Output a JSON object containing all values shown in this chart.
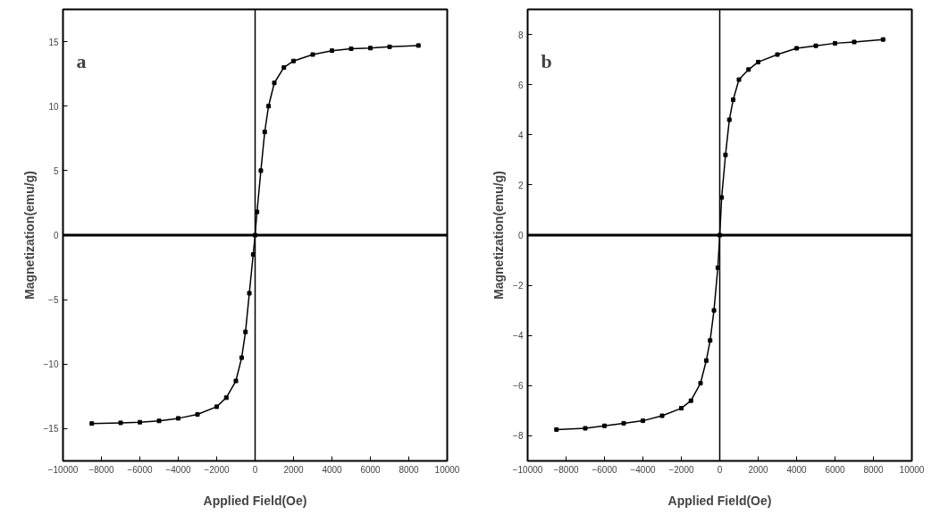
{
  "chart_data": [
    {
      "type": "line",
      "annotations": [
        "a"
      ],
      "xlabel": "Applied Field(Oe)",
      "ylabel": "Magnetization(emu/g)",
      "marker": "square",
      "line_style": "solid",
      "grid": false,
      "x": [
        -8500,
        -7000,
        -6000,
        -5000,
        -4000,
        -3000,
        -2000,
        -1500,
        -1000,
        -700,
        -500,
        -300,
        -100,
        0,
        100,
        300,
        500,
        700,
        1000,
        1500,
        2000,
        3000,
        4000,
        5000,
        6000,
        7000,
        8500
      ],
      "series": [
        {
          "color": "#000000",
          "values": [
            -14.6,
            -14.55,
            -14.5,
            -14.4,
            -14.2,
            -13.9,
            -13.3,
            -12.6,
            -11.3,
            -9.5,
            -7.5,
            -4.5,
            -1.5,
            0,
            1.8,
            5,
            8,
            10,
            11.8,
            13,
            13.5,
            14.0,
            14.3,
            14.45,
            14.5,
            14.6,
            14.7
          ]
        }
      ],
      "xlim": [
        -10000,
        10000
      ],
      "xticks": [
        -10000,
        -8000,
        -6000,
        -4000,
        -2000,
        0,
        2000,
        4000,
        6000,
        8000,
        10000
      ],
      "ylim": [
        -17.5,
        17.5
      ],
      "yticks": [
        -15,
        -10,
        -5,
        0,
        5,
        10,
        15
      ],
      "ref_lines": [
        {
          "axis": "x",
          "value": 0,
          "color": "#000000"
        },
        {
          "axis": "y",
          "value": 0,
          "color": "#000000"
        }
      ]
    },
    {
      "type": "line",
      "annotations": [
        "b"
      ],
      "xlabel": "Applied Field(Oe)",
      "ylabel": "Magnetization(emu/g)",
      "marker": "square",
      "line_style": "solid",
      "grid": false,
      "x": [
        -8500,
        -7000,
        -6000,
        -5000,
        -4000,
        -3000,
        -2000,
        -1500,
        -1000,
        -700,
        -500,
        -300,
        -100,
        0,
        100,
        300,
        500,
        700,
        1000,
        1500,
        2000,
        3000,
        4000,
        5000,
        6000,
        7000,
        8500
      ],
      "series": [
        {
          "color": "#000000",
          "values": [
            -7.75,
            -7.7,
            -7.6,
            -7.5,
            -7.4,
            -7.2,
            -6.9,
            -6.6,
            -5.9,
            -5.0,
            -4.2,
            -3.0,
            -1.3,
            0,
            1.5,
            3.2,
            4.6,
            5.4,
            6.2,
            6.6,
            6.9,
            7.2,
            7.45,
            7.55,
            7.65,
            7.7,
            7.8
          ]
        }
      ],
      "xlim": [
        -10000,
        10000
      ],
      "xticks": [
        -10000,
        -8000,
        -6000,
        -4000,
        -2000,
        0,
        2000,
        4000,
        6000,
        8000,
        10000
      ],
      "ylim": [
        -9,
        9
      ],
      "yticks": [
        -8,
        -6,
        -4,
        -2,
        0,
        2,
        4,
        6,
        8
      ],
      "ref_lines": [
        {
          "axis": "x",
          "value": 0,
          "color": "#000000"
        },
        {
          "axis": "y",
          "value": 0,
          "color": "#000000"
        }
      ]
    }
  ]
}
